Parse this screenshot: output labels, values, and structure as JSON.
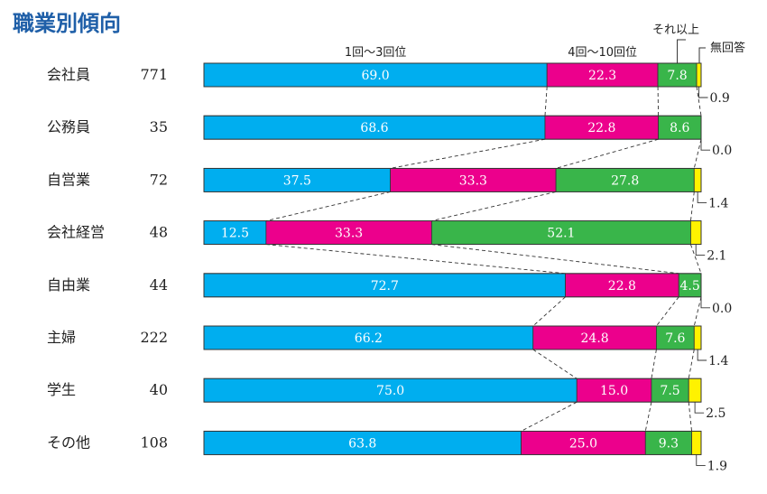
{
  "title": "職業別傾向",
  "chart_data": {
    "type": "bar",
    "stacked": true,
    "orientation": "horizontal",
    "percent": true,
    "title": "職業別傾向",
    "column_headers": [
      "1回～3回位",
      "4回～10回位",
      "それ以上",
      "無回答"
    ],
    "categories": [
      "会社員",
      "公務員",
      "自営業",
      "会社経営",
      "自由業",
      "主婦",
      "学生",
      "その他"
    ],
    "counts": [
      771,
      35,
      72,
      48,
      44,
      222,
      40,
      108
    ],
    "series": [
      {
        "name": "1回～3回位",
        "color": "#00aeef",
        "values": [
          69.0,
          68.6,
          37.5,
          12.5,
          72.7,
          66.2,
          75.0,
          63.8
        ]
      },
      {
        "name": "4回～10回位",
        "color": "#ec008c",
        "values": [
          22.3,
          22.8,
          33.3,
          33.3,
          22.8,
          24.8,
          15.0,
          25.0
        ]
      },
      {
        "name": "それ以上",
        "color": "#39b54a",
        "values": [
          7.8,
          8.6,
          27.8,
          52.1,
          4.5,
          7.6,
          7.5,
          9.3
        ]
      },
      {
        "name": "無回答",
        "color": "#fff200",
        "values": [
          0.9,
          0.0,
          1.4,
          2.1,
          0.0,
          1.4,
          2.5,
          1.9
        ]
      }
    ],
    "colors": {
      "title": "#1f5fa8",
      "connector": "#333333",
      "bar_border": "#333333"
    }
  }
}
